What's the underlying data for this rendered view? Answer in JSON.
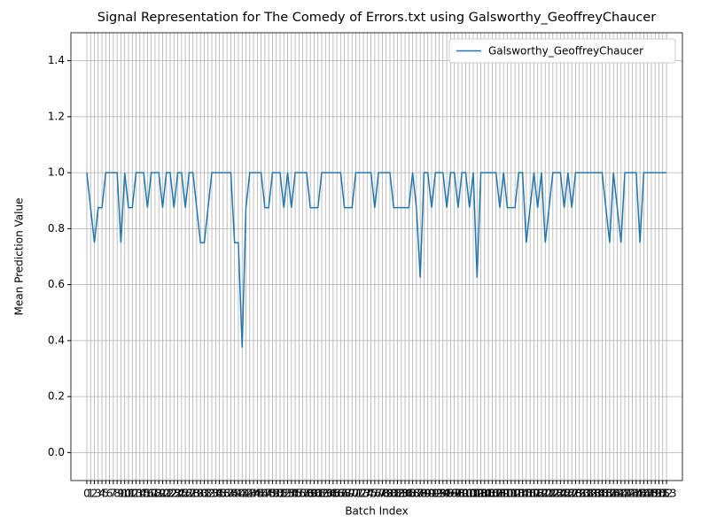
{
  "chart_data": {
    "type": "line",
    "title": "Signal Representation for The Comedy of Errors.txt using Galsworthy_GeoffreyChaucer",
    "x_label": "Batch Index",
    "y_label": "Mean Prediction Value",
    "x": [
      0,
      1,
      2,
      3,
      4,
      5,
      6,
      7,
      8,
      9,
      10,
      11,
      12,
      13,
      14,
      15,
      16,
      17,
      18,
      19,
      20,
      21,
      22,
      23,
      24,
      25,
      26,
      27,
      28,
      29,
      30,
      31,
      32,
      33,
      34,
      35,
      36,
      37,
      38,
      39,
      40,
      41,
      42,
      43,
      44,
      45,
      46,
      47,
      48,
      49,
      50,
      51,
      52,
      53,
      54,
      55,
      56,
      57,
      58,
      59,
      60,
      61,
      62,
      63,
      64,
      65,
      66,
      67,
      68,
      69,
      70,
      71,
      72,
      73,
      74,
      75,
      76,
      77,
      78,
      79,
      80,
      81,
      82,
      83,
      84,
      85,
      86,
      87,
      88,
      89,
      90,
      91,
      92,
      93,
      94,
      95,
      96,
      97,
      98,
      99,
      100,
      101,
      102,
      103,
      104,
      105,
      106,
      107,
      108,
      109,
      110,
      111,
      112,
      113,
      114,
      115,
      116,
      117,
      118,
      119,
      120,
      121,
      122,
      123,
      124,
      125,
      126,
      127,
      128,
      129,
      130,
      131,
      132,
      133,
      134,
      135,
      136,
      137,
      138,
      139,
      140,
      141,
      142,
      143,
      144,
      145,
      146,
      147,
      148,
      149,
      150,
      151,
      152,
      153
    ],
    "series": [
      {
        "name": "Galsworthy_GeoffreyChaucer",
        "color": "#1f77b4",
        "values": [
          1,
          0.875,
          0.75,
          0.875,
          0.875,
          1,
          1,
          1,
          1,
          0.75,
          1,
          0.875,
          0.875,
          1,
          1,
          1,
          0.875,
          1,
          1,
          1,
          0.875,
          1,
          1,
          0.875,
          1,
          1,
          0.875,
          1,
          1,
          0.875,
          0.75,
          0.75,
          0.875,
          1,
          1,
          1,
          1,
          1,
          1,
          0.75,
          0.75,
          0.375,
          0.875,
          1,
          1,
          1,
          1,
          0.875,
          0.875,
          1,
          1,
          1,
          0.875,
          1,
          0.875,
          1,
          1,
          1,
          1,
          0.875,
          0.875,
          0.875,
          1,
          1,
          1,
          1,
          1,
          1,
          0.875,
          0.875,
          0.875,
          1,
          1,
          1,
          1,
          1,
          0.875,
          1,
          1,
          1,
          1,
          0.875,
          0.875,
          0.875,
          0.875,
          0.875,
          1,
          0.875,
          0.625,
          1,
          1,
          0.875,
          1,
          1,
          1,
          0.875,
          1,
          1,
          0.875,
          1,
          1,
          0.875,
          1,
          0.625,
          1,
          1,
          1,
          1,
          1,
          0.875,
          1,
          0.875,
          0.875,
          0.875,
          1,
          1,
          0.75,
          0.875,
          1,
          0.875,
          1,
          0.75,
          0.875,
          1,
          1,
          1,
          0.875,
          1,
          0.875,
          1,
          1,
          1,
          1,
          1,
          1,
          1,
          1,
          0.875,
          0.75,
          1,
          0.875,
          0.75,
          1,
          1,
          1,
          1,
          0.75,
          1,
          1,
          1,
          1,
          1,
          1,
          1
        ]
      }
    ],
    "xlim": [
      -4.2,
      157.2
    ],
    "ylim": [
      -0.1,
      1.5
    ],
    "xticks": [
      0,
      1,
      2,
      3,
      4,
      5,
      6,
      7,
      8,
      9,
      10,
      11,
      12,
      13,
      14,
      15,
      16,
      17,
      18,
      19,
      20,
      21,
      22,
      23,
      24,
      25,
      26,
      27,
      28,
      29,
      30,
      31,
      32,
      33,
      34,
      35,
      36,
      37,
      38,
      39,
      40,
      41,
      42,
      43,
      44,
      45,
      46,
      47,
      48,
      49,
      50,
      51,
      52,
      53,
      54,
      55,
      56,
      57,
      58,
      59,
      60,
      61,
      62,
      63,
      64,
      65,
      66,
      67,
      68,
      69,
      70,
      71,
      72,
      73,
      74,
      75,
      76,
      77,
      78,
      79,
      80,
      81,
      82,
      83,
      84,
      85,
      86,
      87,
      88,
      89,
      90,
      91,
      92,
      93,
      94,
      95,
      96,
      97,
      98,
      99,
      100,
      101,
      102,
      103,
      104,
      105,
      106,
      107,
      108,
      109,
      110,
      111,
      112,
      113,
      114,
      115,
      116,
      117,
      118,
      119,
      120,
      121,
      122,
      123,
      124,
      125,
      126,
      127,
      128,
      129,
      130,
      131,
      132,
      133,
      134,
      135,
      136,
      137,
      138,
      139,
      140,
      141,
      142,
      143,
      144,
      145,
      146,
      147,
      148,
      149,
      150,
      151,
      152,
      153
    ],
    "yticks": [
      {
        "value": 0,
        "label": "0.0"
      },
      {
        "value": 0.2,
        "label": "0.2"
      },
      {
        "value": 0.4,
        "label": "0.4"
      },
      {
        "value": 0.6,
        "label": "0.6"
      },
      {
        "value": 0.8,
        "label": "0.8"
      },
      {
        "value": 1,
        "label": "1.0"
      },
      {
        "value": 1.2,
        "label": "1.2"
      },
      {
        "value": 1.4,
        "label": "1.4"
      }
    ],
    "grid": true,
    "legend": "upper right"
  }
}
